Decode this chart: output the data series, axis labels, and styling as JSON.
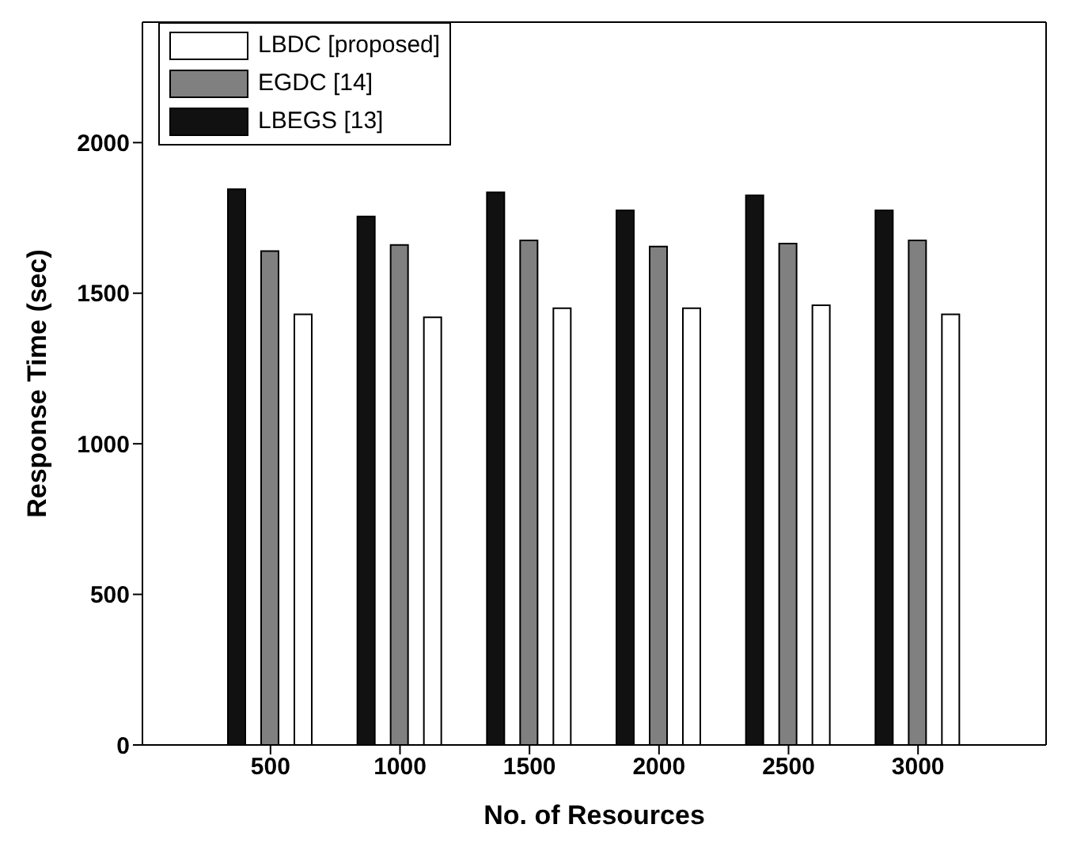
{
  "chart_data": {
    "type": "bar",
    "xlabel": "No. of Resources",
    "ylabel": "Response Time (sec)",
    "categories": [
      "500",
      "1000",
      "1500",
      "2000",
      "2500",
      "3000"
    ],
    "series": [
      {
        "name": "LBEGS [13]",
        "color": "#111111",
        "values": [
          1845,
          1755,
          1835,
          1775,
          1825,
          1775
        ]
      },
      {
        "name": "EGDC [14]",
        "color": "#808080",
        "values": [
          1640,
          1660,
          1675,
          1655,
          1665,
          1675
        ]
      },
      {
        "name": "LBDC [proposed]",
        "color": "#ffffff",
        "values": [
          1430,
          1420,
          1450,
          1450,
          1460,
          1430
        ]
      }
    ],
    "ylim": [
      0,
      2400
    ],
    "yticks": [
      0,
      500,
      1000,
      1500,
      2000
    ],
    "grid": false,
    "legend": "top left"
  }
}
